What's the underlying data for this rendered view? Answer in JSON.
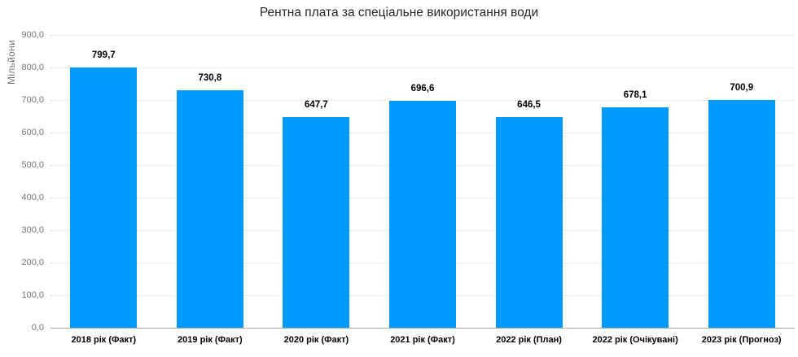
{
  "chart_data": {
    "type": "bar",
    "title": "Рентна плата за спеціальне використання води",
    "ylabel": "Мільйони",
    "xlabel": "",
    "categories": [
      "2018 рік (Факт)",
      "2019 рік (Факт)",
      "2020 рік (Факт)",
      "2021 рік (Факт)",
      "2022 рік (План)",
      "2022 рік (Очікувані)",
      "2023 рік (Прогноз)"
    ],
    "values": [
      799.7,
      730.8,
      647.7,
      696.6,
      646.5,
      678.1,
      700.9
    ],
    "value_labels": [
      "799,7",
      "730,8",
      "647,7",
      "696,6",
      "646,5",
      "678,1",
      "700,9"
    ],
    "ylim": [
      0,
      900
    ],
    "ytick_values": [
      0,
      100,
      200,
      300,
      400,
      500,
      600,
      700,
      800,
      900
    ],
    "ytick_labels": [
      "0,0",
      "100,0",
      "200,0",
      "300,0",
      "400,0",
      "500,0",
      "600,0",
      "700,0",
      "800,0",
      "900,0"
    ],
    "grid": "horizontal-dotted",
    "legend": "none"
  },
  "colors": {
    "bar": "#0099FF",
    "gridline": "#D9D9D9",
    "axis_line": "#A6A6A6",
    "tick_text": "#757575",
    "label_text": "#000000",
    "title_text": "#262626",
    "background": "#FFFFFF"
  }
}
